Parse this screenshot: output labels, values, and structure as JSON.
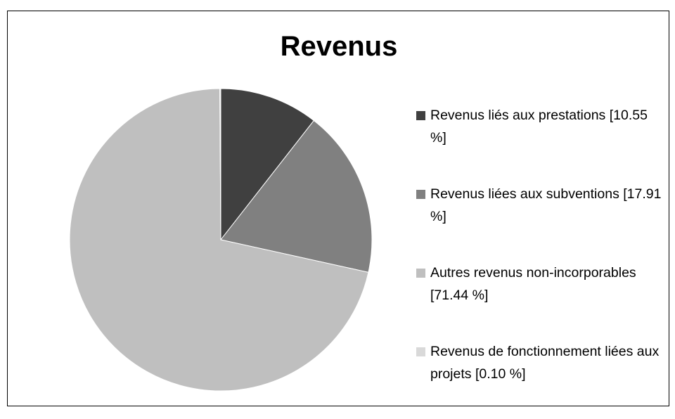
{
  "chart_data": {
    "type": "pie",
    "title": "Revenus",
    "categories": [
      "Revenus liés aux prestations",
      "Revenus liées aux subventions",
      "Autres revenus non-incorporables",
      "Revenus de fonctionnement liées aux projets"
    ],
    "values": [
      10.55,
      17.91,
      71.44,
      0.1
    ],
    "value_labels": [
      "[10.55 %]",
      "[17.91 %]",
      "[71.44 %]",
      "[0.10 %]"
    ],
    "colors": [
      "#404040",
      "#808080",
      "#bfbfbf",
      "#d9d9d9"
    ],
    "legend": "right"
  }
}
